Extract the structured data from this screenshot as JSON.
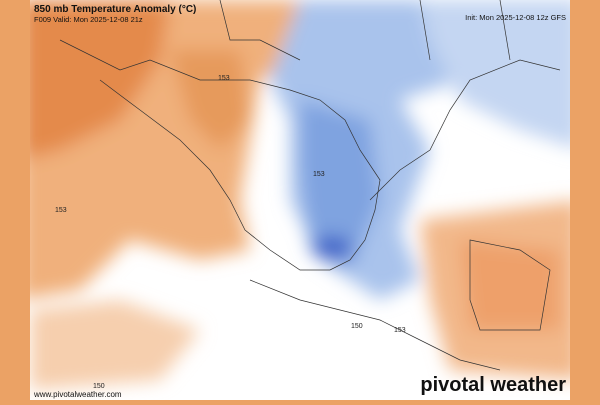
{
  "header": {
    "title": "850 mb Temperature Anomaly (°C)",
    "valid": "F009 Valid: Mon 2025-12-08 21z",
    "init": "Init: Mon 2025-12-08 12z GFS"
  },
  "footer": {
    "url": "www.pivotalweather.com",
    "logo": "pivotal weather"
  },
  "contour_labels": [
    "153",
    "153",
    "153",
    "150",
    "153",
    "150"
  ]
}
